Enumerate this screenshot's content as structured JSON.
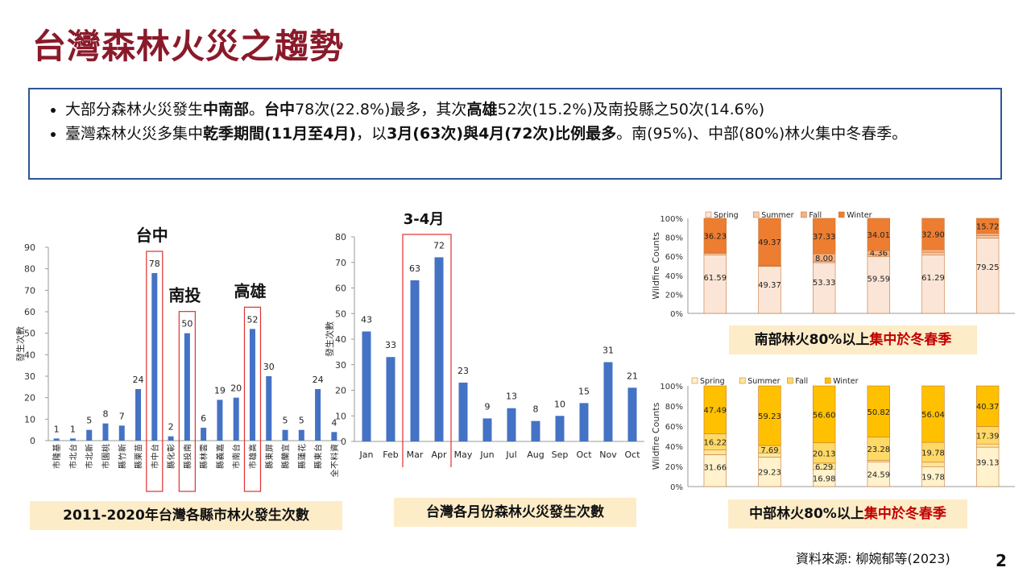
{
  "title": "台灣森林火災之趨勢",
  "summary": {
    "bullet1": [
      {
        "t": "大部分森林火災發生",
        "b": false
      },
      {
        "t": "中南部",
        "b": true
      },
      {
        "t": "。",
        "b": false
      },
      {
        "t": "台中",
        "b": true
      },
      {
        "t": "78次(22.8%)最多，其次",
        "b": false
      },
      {
        "t": "高雄",
        "b": true
      },
      {
        "t": "52次(15.2%)及南投縣之50次(14.6%)",
        "b": false
      }
    ],
    "bullet2": [
      {
        "t": "臺灣森林火災多集中",
        "b": false
      },
      {
        "t": "乾季期間(11月至4月)",
        "b": true
      },
      {
        "t": "，以",
        "b": false
      },
      {
        "t": "3月(63次)與4月(72次)比例最多",
        "b": true
      },
      {
        "t": "。南(95%)、中部(80%)林火集中冬春季。",
        "b": false
      }
    ]
  },
  "chart_data": [
    {
      "type": "bar",
      "ylabel": "發生次數",
      "ylim": [
        0,
        90
      ],
      "yticks": [
        0,
        10,
        20,
        30,
        40,
        50,
        60,
        70,
        80,
        90
      ],
      "categories": [
        "基隆市",
        "台北市",
        "新北市",
        "桃園市",
        "新竹縣",
        "苗栗縣",
        "台中市",
        "彰化縣",
        "南投縣",
        "雲林縣",
        "嘉義縣",
        "台南市",
        "高雄市",
        "屏東縣",
        "宜蘭縣",
        "花蓮縣",
        "台東縣",
        "資料不全"
      ],
      "values": [
        1,
        1,
        5,
        8,
        7,
        24,
        78,
        2,
        50,
        6,
        19,
        20,
        52,
        30,
        5,
        5,
        24,
        4
      ],
      "highlights": [
        {
          "category": "台中市",
          "label": "台中"
        },
        {
          "category": "南投縣",
          "label": "南投"
        },
        {
          "category": "高雄市",
          "label": "高雄"
        }
      ],
      "bar_color": "#4472c4",
      "caption": "2011-2020年台灣各縣市林火發生次數"
    },
    {
      "type": "bar",
      "ylabel": "發生次數",
      "ylim": [
        0,
        80
      ],
      "yticks": [
        0,
        10,
        20,
        30,
        40,
        50,
        60,
        70,
        80
      ],
      "categories": [
        "Jan",
        "Feb",
        "Mar",
        "Apr",
        "May",
        "Jun",
        "Jul",
        "Aug",
        "Sep",
        "Oct",
        "Nov",
        "Oct"
      ],
      "values": [
        43,
        33,
        63,
        72,
        23,
        9,
        13,
        8,
        10,
        15,
        31,
        21
      ],
      "highlight": {
        "categories": [
          "Mar",
          "Apr"
        ],
        "label": "3-4月"
      },
      "bar_color": "#4472c4",
      "caption": "台灣各月份森林火災發生次數"
    },
    {
      "type": "bar",
      "stacked": true,
      "ylabel": "Wildfire Counts",
      "yticks": [
        "0%",
        "20%",
        "40%",
        "60%",
        "80%",
        "100%"
      ],
      "legend": [
        "Spring",
        "Summer",
        "Fall",
        "Winter"
      ],
      "colors": [
        "#fbe5d6",
        "#f8cbad",
        "#f4b183",
        "#ed7d31"
      ],
      "bars": [
        {
          "values": [
            61.59,
            1.45,
            0.73,
            36.23
          ],
          "labels": [
            "61.59",
            "",
            "",
            "36.23"
          ]
        },
        {
          "values": [
            49.37,
            0.63,
            0.63,
            49.37
          ],
          "labels": [
            "49.37",
            "",
            "",
            "49.37"
          ]
        },
        {
          "values": [
            53.33,
            1.34,
            8.0,
            37.33
          ],
          "labels": [
            "53.33",
            "",
            "8.00",
            "37.33"
          ]
        },
        {
          "values": [
            59.59,
            2.04,
            4.36,
            34.01
          ],
          "labels": [
            "59.59",
            "",
            "4.36",
            "34.01"
          ]
        },
        {
          "values": [
            61.29,
            2.9,
            2.91,
            32.9
          ],
          "labels": [
            "61.29",
            "",
            "",
            "32.90"
          ]
        },
        {
          "values": [
            79.25,
            2.51,
            2.52,
            15.72
          ],
          "labels": [
            "79.25",
            "",
            "",
            "15.72"
          ]
        }
      ],
      "caption_plain": "南部林火80%以上",
      "caption_red": "集中於冬春季"
    },
    {
      "type": "bar",
      "stacked": true,
      "ylabel": "Wildfire Counts",
      "yticks": [
        "0%",
        "20%",
        "40%",
        "60%",
        "80%",
        "100%"
      ],
      "legend": [
        "Spring",
        "Summer",
        "Fall",
        "Winter"
      ],
      "colors": [
        "#fff2cc",
        "#ffe699",
        "#ffd966",
        "#ffc000"
      ],
      "bars": [
        {
          "values": [
            31.66,
            4.63,
            16.22,
            47.49
          ],
          "labels": [
            "31.66",
            "",
            "16.22",
            "47.49"
          ]
        },
        {
          "values": [
            29.23,
            3.85,
            7.69,
            59.23
          ],
          "labels": [
            "29.23",
            "",
            "7.69",
            "59.23"
          ]
        },
        {
          "values": [
            16.98,
            6.29,
            20.13,
            56.6
          ],
          "labels": [
            "16.98",
            "6.29",
            "20.13",
            "56.60"
          ]
        },
        {
          "values": [
            24.59,
            1.31,
            23.28,
            50.82
          ],
          "labels": [
            "24.59",
            "",
            "23.28",
            "50.82"
          ]
        },
        {
          "values": [
            19.78,
            4.4,
            19.78,
            56.04
          ],
          "labels": [
            "19.78",
            "",
            "19.78",
            "56.04"
          ]
        },
        {
          "values": [
            39.13,
            3.11,
            17.39,
            40.37
          ],
          "labels": [
            "39.13",
            "",
            "17.39",
            "40.37"
          ]
        }
      ],
      "caption_plain": "中部林火80%以上",
      "caption_red": "集中於冬春季"
    }
  ],
  "source": "資料來源: 柳婉郁等(2023)",
  "page_number": "2"
}
